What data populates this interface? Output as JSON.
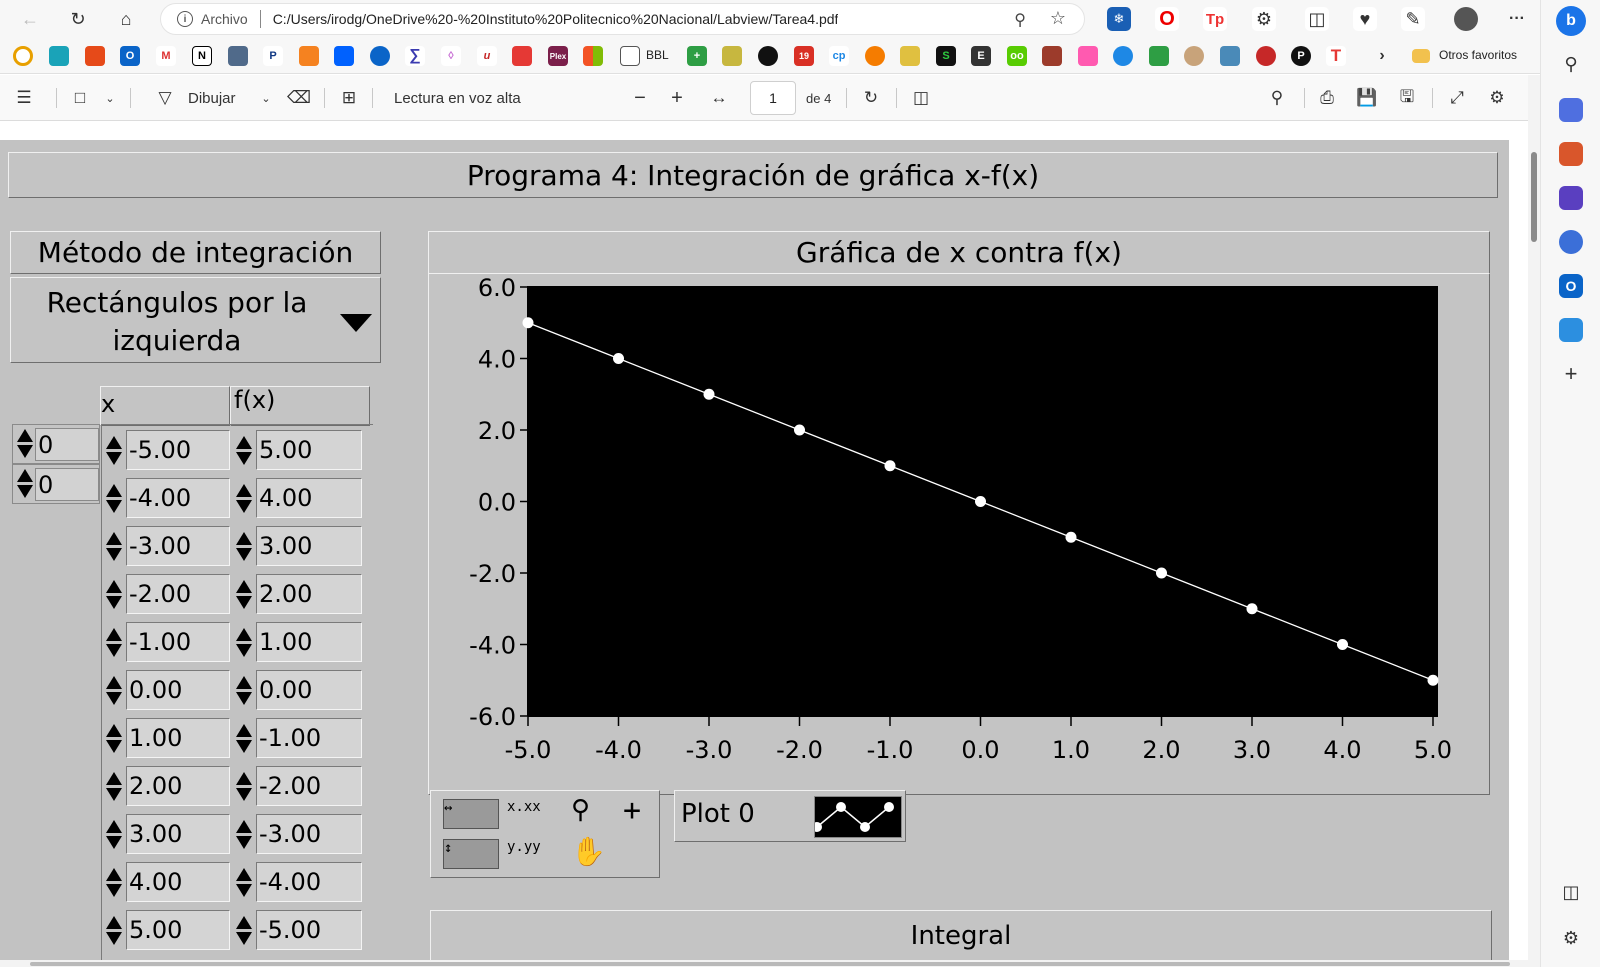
{
  "browser": {
    "address_label": "Archivo",
    "url": "C:/Users/irodg/OneDrive%20-%20Instituto%20Politecnico%20Nacional/Labview/Tarea4.pdf",
    "bookmarks_text": [
      "BBL"
    ],
    "other_favorites": "Otros favoritos",
    "more_menu": "···"
  },
  "pdf_toolbar": {
    "draw_label": "Dibujar",
    "read_aloud_label": "Lectura en voz alta",
    "zoom_out": "−",
    "zoom_in": "+",
    "current_page": "1",
    "page_total": "de 4"
  },
  "labview": {
    "title": "Programa 4: Integración de gráfica x-f(x)",
    "method_label": "Método de integración",
    "method_value_line1": "Rectángulos por la",
    "method_value_line2": "izquierda",
    "col_x_label": "x",
    "col_fx_label": "f(x)",
    "index_x": "0",
    "index_fx": "0",
    "x_values": [
      "-5.00",
      "-4.00",
      "-3.00",
      "-2.00",
      "-1.00",
      "0.00",
      "1.00",
      "2.00",
      "3.00",
      "4.00",
      "5.00"
    ],
    "fx_values": [
      "5.00",
      "4.00",
      "3.00",
      "2.00",
      "1.00",
      "0.00",
      "-1.00",
      "-2.00",
      "-3.00",
      "-4.00",
      "-5.00"
    ],
    "graph_title": "Gráfica de x contra f(x)",
    "legend_plot": "Plot 0",
    "integral_label": "Integral",
    "palette": {
      "x_fmt": "x.xx",
      "y_fmt": "y.yy"
    }
  },
  "chart_data": {
    "type": "line",
    "title": "Gráfica de x contra f(x)",
    "xlim": [
      -5,
      5
    ],
    "ylim": [
      -6,
      6
    ],
    "x_ticks": [
      "-5.0",
      "-4.0",
      "-3.0",
      "-2.0",
      "-1.0",
      "0.0",
      "1.0",
      "2.0",
      "3.0",
      "4.0",
      "5.0"
    ],
    "y_ticks": [
      "6.0",
      "4.0",
      "2.0",
      "0.0",
      "-2.0",
      "-4.0",
      "-6.0"
    ],
    "series": [
      {
        "name": "Plot 0",
        "color": "#ffffff",
        "marker": "circle",
        "x": [
          -5,
          -4,
          -3,
          -2,
          -1,
          0,
          1,
          2,
          3,
          4,
          5
        ],
        "y": [
          5,
          4,
          3,
          2,
          1,
          0,
          -1,
          -2,
          -3,
          -4,
          -5
        ]
      }
    ],
    "background": "#000000",
    "grid": false
  }
}
